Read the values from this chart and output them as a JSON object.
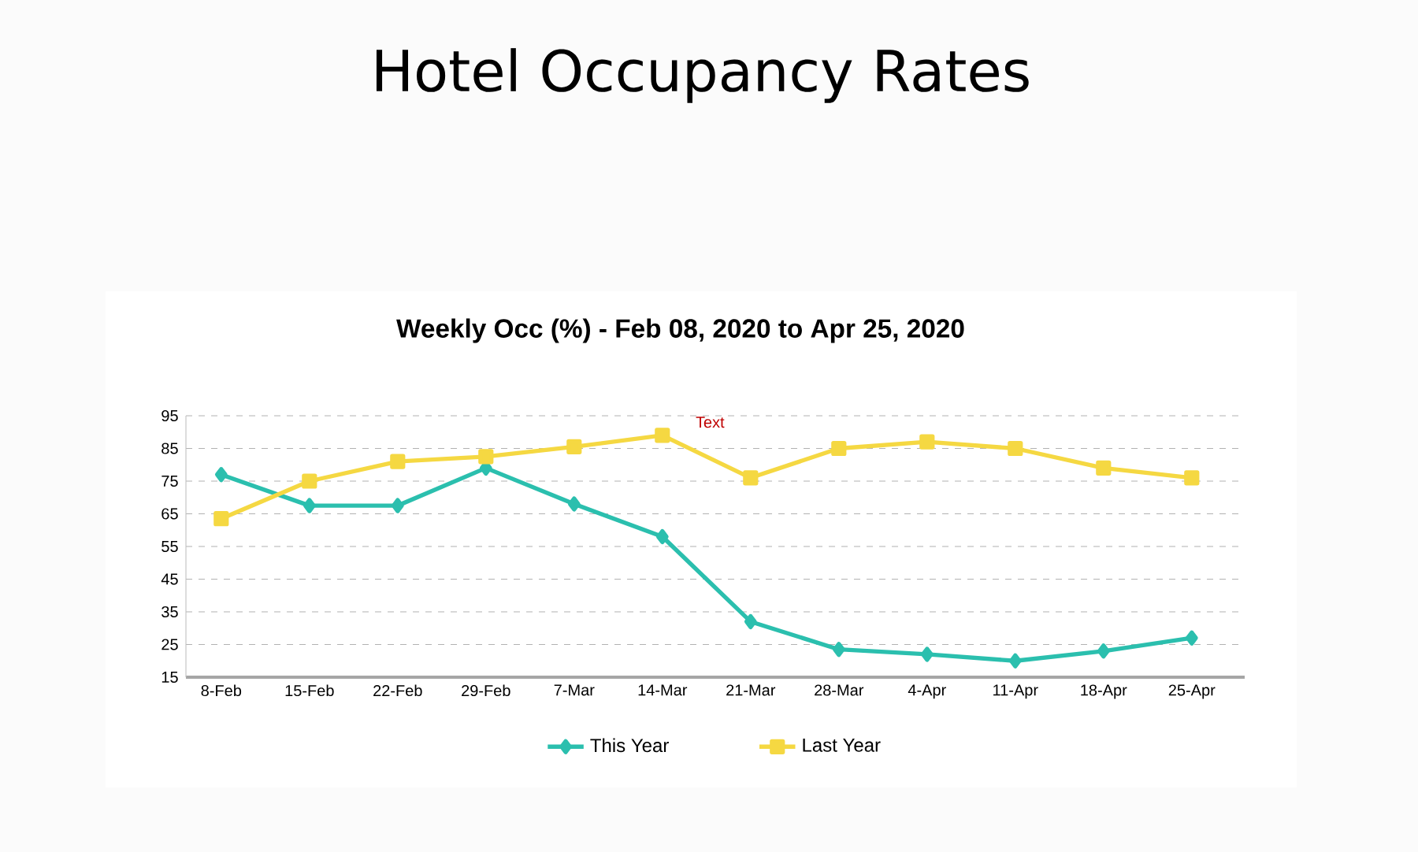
{
  "chart_data": {
    "type": "line",
    "title": "Hotel Occupancy Rates",
    "subtitle": "Weekly Occ (%) - Feb 08, 2020 to Apr 25, 2020",
    "categories": [
      "8-Feb",
      "15-Feb",
      "22-Feb",
      "29-Feb",
      "7-Mar",
      "14-Mar",
      "21-Mar",
      "28-Mar",
      "4-Apr",
      "11-Apr",
      "18-Apr",
      "25-Apr"
    ],
    "series": [
      {
        "name": "This Year",
        "color": "#2bbfae",
        "marker": "diamond",
        "values": [
          77,
          67.5,
          67.5,
          79,
          68,
          58,
          32,
          23.5,
          22,
          20,
          23,
          27
        ]
      },
      {
        "name": "Last Year",
        "color": "#f5d842",
        "marker": "square",
        "values": [
          63.5,
          75,
          81,
          82.5,
          85.5,
          89,
          76,
          85,
          87,
          85,
          79,
          76
        ]
      }
    ],
    "ylim": [
      15,
      95
    ],
    "yticks": [
      15,
      25,
      35,
      45,
      55,
      65,
      75,
      85,
      95
    ],
    "grid": "y",
    "legend": "bottom",
    "annotations": [
      "Text"
    ]
  }
}
